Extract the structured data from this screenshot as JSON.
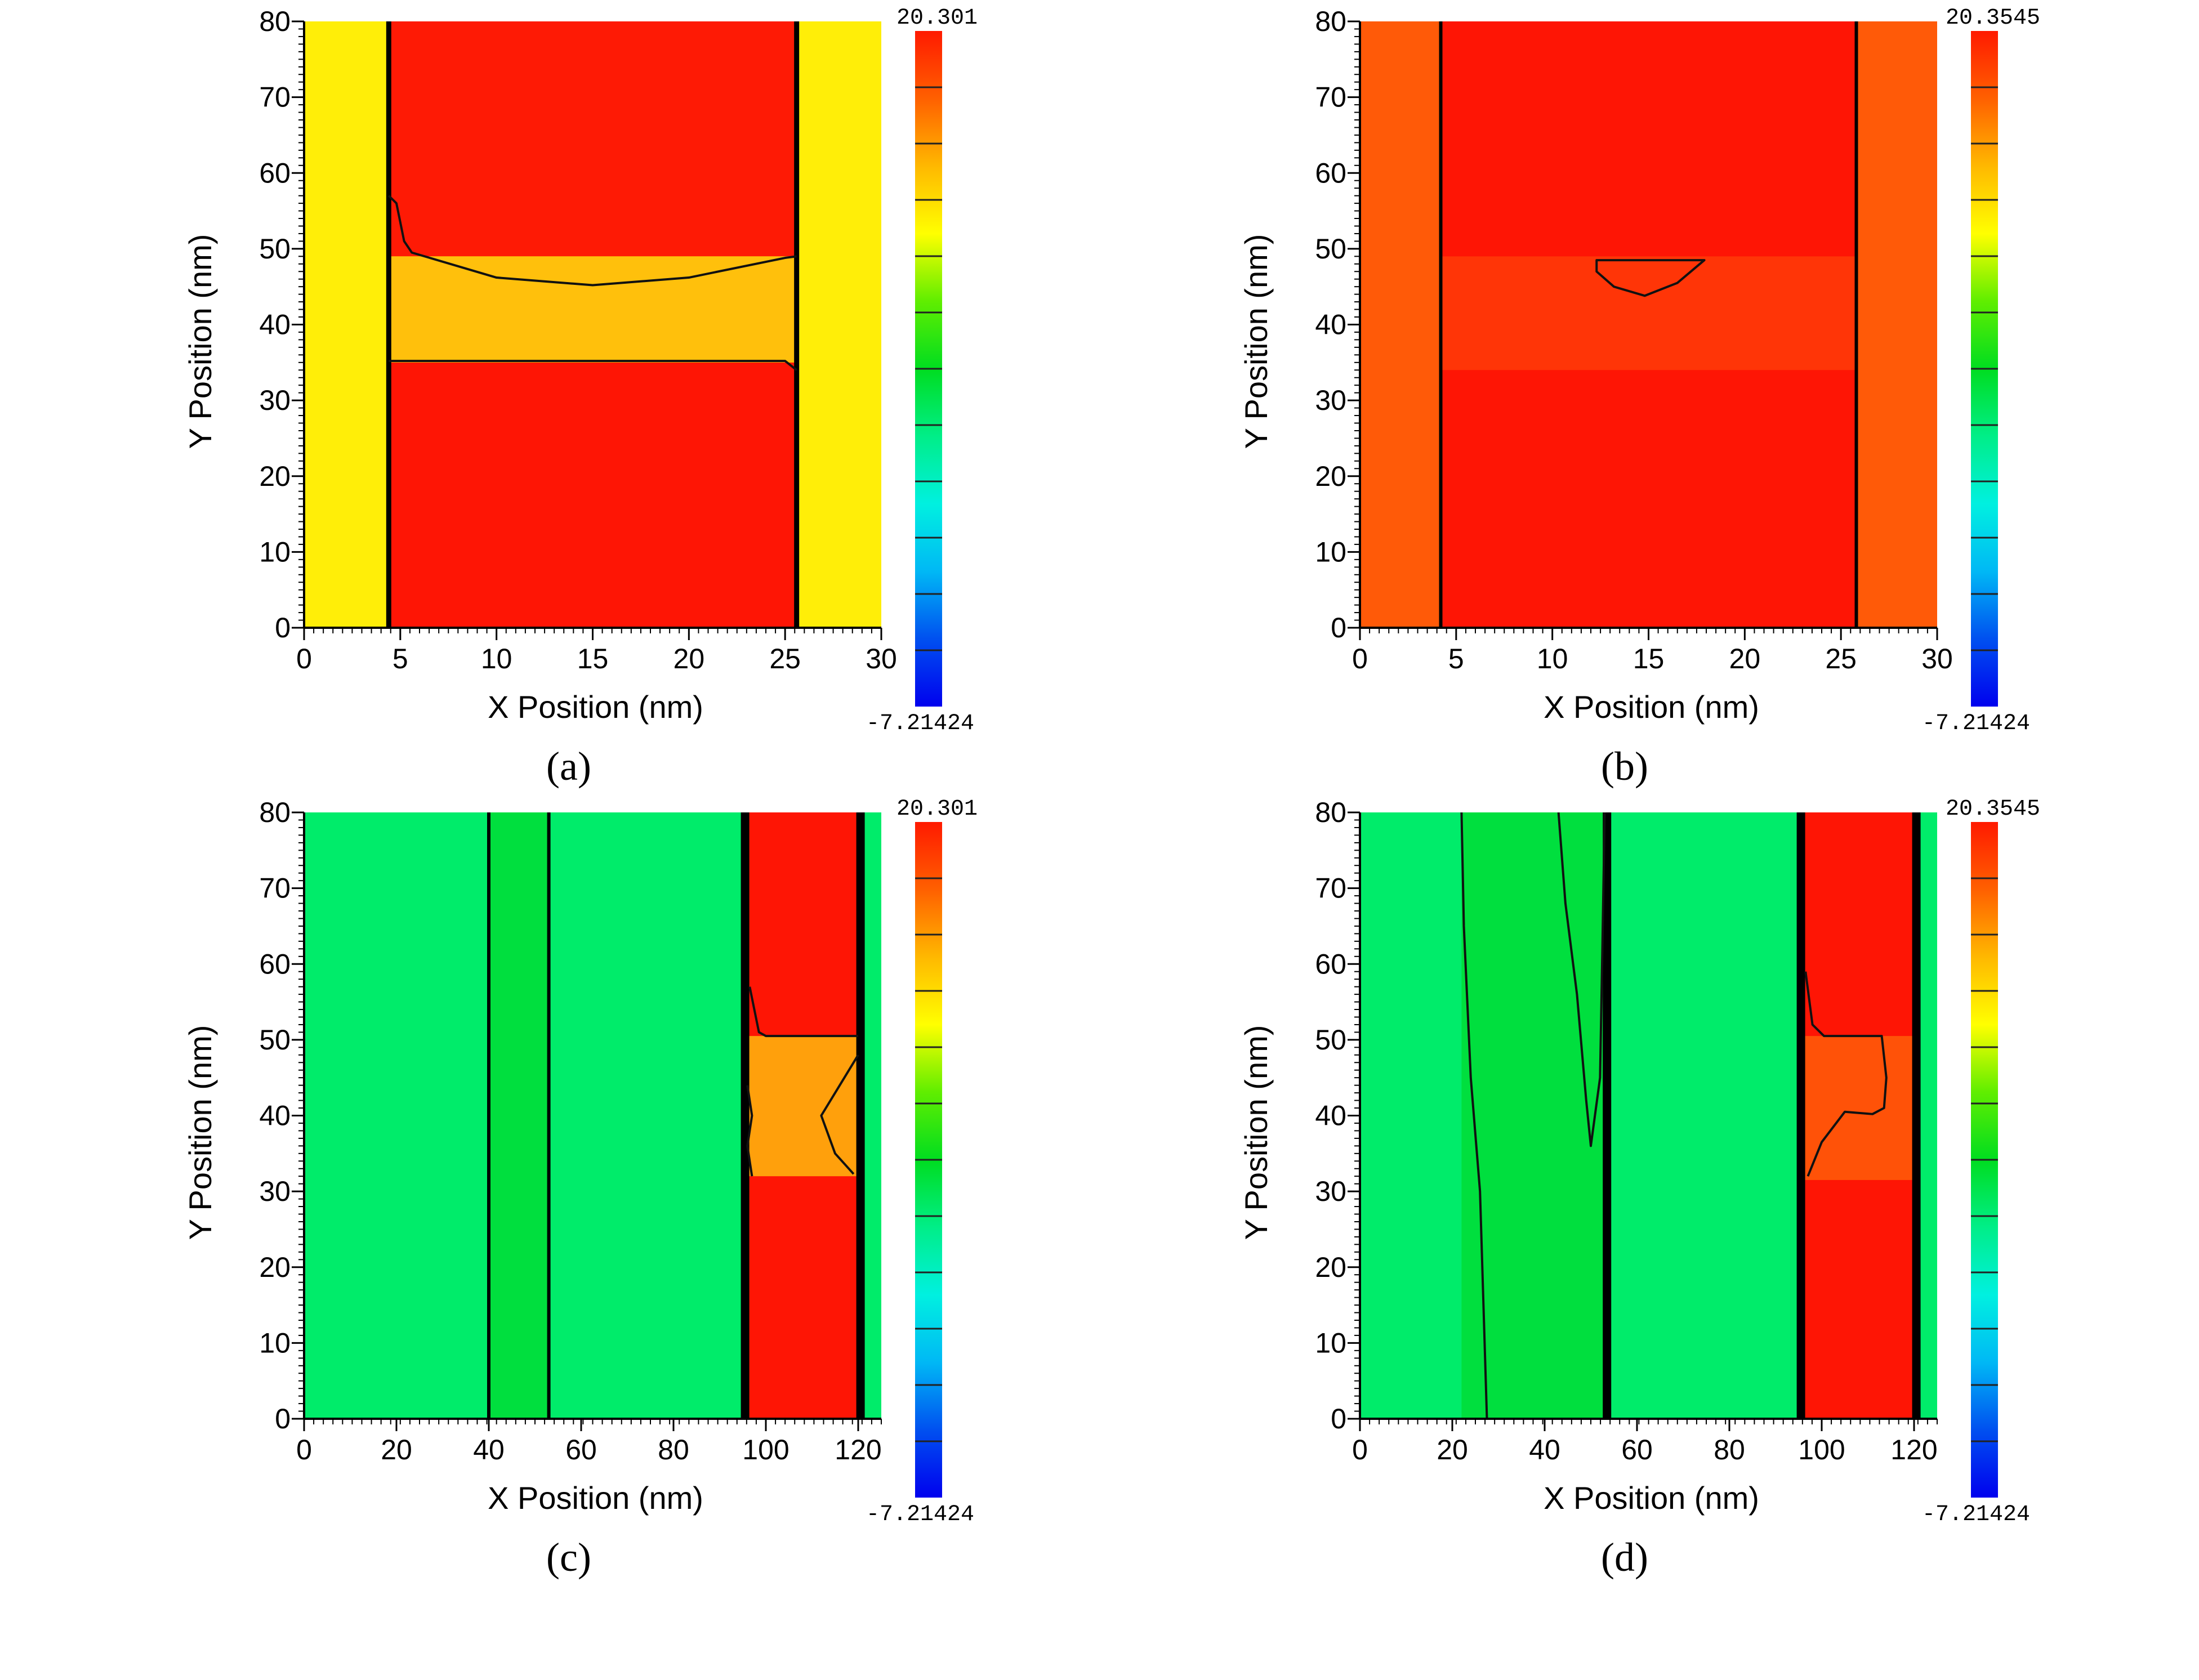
{
  "colors": {
    "red": "#fe1505",
    "red_orange": "#ff5a08",
    "orange": "#ff9a0c",
    "yellow": "#ffed08",
    "green_light": "#00ec6a",
    "green_bright": "#00dc16",
    "black": "#000000"
  },
  "chart_data": [
    {
      "id": "a",
      "type": "heatmap",
      "caption": "(a)",
      "xlabel": "X Position (nm)",
      "ylabel": "Y Position (nm)",
      "xlim": [
        0,
        30
      ],
      "ylim": [
        0,
        80
      ],
      "xticks": [
        0,
        5,
        10,
        15,
        20,
        25,
        30
      ],
      "yticks": [
        0,
        10,
        20,
        30,
        40,
        50,
        60,
        70,
        80
      ],
      "colorbar": {
        "max_label": "20.301",
        "min_label": "-7.21424"
      },
      "regions": [
        {
          "x": [
            0,
            30
          ],
          "y": [
            0,
            80
          ],
          "color": "#ffee08"
        },
        {
          "x": [
            4.4,
            25.6
          ],
          "y": [
            0,
            35
          ],
          "color": "#fe1505"
        },
        {
          "x": [
            4.4,
            25.6
          ],
          "y": [
            49,
            80
          ],
          "color": "#fe1a05"
        },
        {
          "x": [
            4.4,
            25.6
          ],
          "y": [
            35,
            49
          ],
          "color": "#ffc00c"
        }
      ],
      "boundaries": [
        {
          "points": [
            [
              4.4,
              0
            ],
            [
              4.4,
              80
            ]
          ],
          "width": 3
        },
        {
          "points": [
            [
              25.6,
              0
            ],
            [
              25.6,
              80
            ]
          ],
          "width": 3
        }
      ],
      "contours": [
        {
          "points": [
            [
              4.4,
              57
            ],
            [
              4.8,
              56
            ],
            [
              5.2,
              51
            ],
            [
              5.6,
              49.5
            ],
            [
              10,
              46.2
            ],
            [
              15,
              45.2
            ],
            [
              20,
              46.2
            ],
            [
              25,
              48.8
            ],
            [
              25.6,
              49
            ]
          ]
        },
        {
          "points": [
            [
              4.4,
              35.2
            ],
            [
              25,
              35.2
            ],
            [
              25.6,
              34
            ]
          ]
        }
      ]
    },
    {
      "id": "b",
      "type": "heatmap",
      "caption": "(b)",
      "xlabel": "X Position (nm)",
      "ylabel": "Y Position (nm)",
      "xlim": [
        0,
        30
      ],
      "ylim": [
        0,
        80
      ],
      "xticks": [
        0,
        5,
        10,
        15,
        20,
        25,
        30
      ],
      "yticks": [
        0,
        10,
        20,
        30,
        40,
        50,
        60,
        70,
        80
      ],
      "colorbar": {
        "max_label": "20.3545",
        "min_label": "-7.21424"
      },
      "regions": [
        {
          "x": [
            0,
            30
          ],
          "y": [
            0,
            80
          ],
          "color": "#ff5a08"
        },
        {
          "x": [
            4.2,
            25.8
          ],
          "y": [
            0,
            80
          ],
          "color": "#fe1505"
        },
        {
          "x": [
            4.2,
            25.8
          ],
          "y": [
            34,
            49
          ],
          "color": "#ff3507"
        }
      ],
      "boundaries": [
        {
          "points": [
            [
              4.2,
              0
            ],
            [
              4.2,
              80
            ]
          ],
          "width": 2
        },
        {
          "points": [
            [
              25.8,
              0
            ],
            [
              25.8,
              80
            ]
          ],
          "width": 2
        }
      ],
      "contours": [
        {
          "points": [
            [
              12.3,
              48.5
            ],
            [
              17.9,
              48.5
            ],
            [
              16.5,
              45.5
            ],
            [
              14.8,
              43.8
            ],
            [
              13.2,
              45
            ],
            [
              12.3,
              47
            ]
          ],
          "closed": true
        }
      ]
    },
    {
      "id": "c",
      "type": "heatmap",
      "caption": "(c)",
      "xlabel": "X Position (nm)",
      "ylabel": "Y Position (nm)",
      "xlim": [
        0,
        125
      ],
      "ylim": [
        0,
        80
      ],
      "xticks": [
        0,
        20,
        40,
        60,
        80,
        100,
        120
      ],
      "yticks": [
        0,
        10,
        20,
        30,
        40,
        50,
        60,
        70,
        80
      ],
      "colorbar": {
        "max_label": "20.301",
        "min_label": "-7.21424"
      },
      "regions": [
        {
          "x": [
            0,
            125
          ],
          "y": [
            0,
            80
          ],
          "color": "#00ec6a"
        },
        {
          "x": [
            40,
            53
          ],
          "y": [
            0,
            80
          ],
          "color": "#00df3e"
        },
        {
          "x": [
            95,
            121
          ],
          "y": [
            0,
            80
          ],
          "color": "#fe1505"
        },
        {
          "x": [
            95,
            121
          ],
          "y": [
            32,
            50.5
          ],
          "color": "#ffa00c"
        }
      ],
      "boundaries": [
        {
          "points": [
            [
              40,
              0
            ],
            [
              40,
              80
            ]
          ],
          "width": 2
        },
        {
          "points": [
            [
              53,
              0
            ],
            [
              53,
              80
            ]
          ],
          "width": 2
        },
        {
          "points": [
            [
              95.5,
              0
            ],
            [
              95.5,
              80
            ]
          ],
          "width": 5
        },
        {
          "points": [
            [
              120.5,
              0
            ],
            [
              120.5,
              80
            ]
          ],
          "width": 5
        }
      ],
      "contours": [
        {
          "points": [
            [
              96.5,
              57
            ],
            [
              98.5,
              51
            ],
            [
              100,
              50.5
            ],
            [
              120,
              50.5
            ]
          ]
        },
        {
          "points": [
            [
              120,
              48
            ],
            [
              116,
              44
            ],
            [
              112,
              40
            ],
            [
              115,
              35
            ],
            [
              119,
              32.3
            ]
          ]
        },
        {
          "points": [
            [
              96,
              44
            ],
            [
              97,
              40
            ],
            [
              96,
              36
            ],
            [
              97,
              32
            ]
          ]
        }
      ]
    },
    {
      "id": "d",
      "type": "heatmap",
      "caption": "(d)",
      "xlabel": "X Position (nm)",
      "ylabel": "Y Position (nm)",
      "xlim": [
        0,
        125
      ],
      "ylim": [
        0,
        80
      ],
      "xticks": [
        0,
        20,
        40,
        60,
        80,
        100,
        120
      ],
      "yticks": [
        0,
        10,
        20,
        30,
        40,
        50,
        60,
        70,
        80
      ],
      "colorbar": {
        "max_label": "20.3545",
        "min_label": "-7.21424"
      },
      "regions": [
        {
          "x": [
            0,
            125
          ],
          "y": [
            0,
            80
          ],
          "color": "#00ec6a"
        },
        {
          "x": [
            22,
            53
          ],
          "y": [
            0,
            80
          ],
          "color": "#00df3e"
        },
        {
          "x": [
            95,
            120.5
          ],
          "y": [
            0,
            80
          ],
          "color": "#fe1505"
        },
        {
          "x": [
            95,
            120.5
          ],
          "y": [
            31.5,
            50.5
          ],
          "color": "#ff5208"
        }
      ],
      "boundaries": [
        {
          "points": [
            [
              53.5,
              0
            ],
            [
              53.5,
              80
            ]
          ],
          "width": 5
        },
        {
          "points": [
            [
              95.5,
              0
            ],
            [
              95.5,
              80
            ]
          ],
          "width": 5
        },
        {
          "points": [
            [
              120.5,
              0
            ],
            [
              120.5,
              80
            ]
          ],
          "width": 5
        }
      ],
      "contours": [
        {
          "points": [
            [
              22,
              80
            ],
            [
              22.5,
              65
            ],
            [
              24,
              45
            ],
            [
              26,
              30
            ],
            [
              27.5,
              0
            ]
          ]
        },
        {
          "points": [
            [
              43,
              80
            ],
            [
              44.5,
              68
            ],
            [
              47,
              56
            ],
            [
              49,
              42
            ],
            [
              50,
              36
            ],
            [
              52,
              45
            ],
            [
              52.5,
              62
            ],
            [
              53,
              80
            ]
          ]
        },
        {
          "points": [
            [
              96.5,
              59
            ],
            [
              98,
              52
            ],
            [
              100.5,
              50.5
            ],
            [
              113,
              50.5
            ],
            [
              114,
              45
            ],
            [
              113.5,
              41
            ],
            [
              111,
              40.2
            ],
            [
              105,
              40.5
            ],
            [
              100,
              36.5
            ],
            [
              97,
              32
            ]
          ]
        }
      ]
    }
  ]
}
